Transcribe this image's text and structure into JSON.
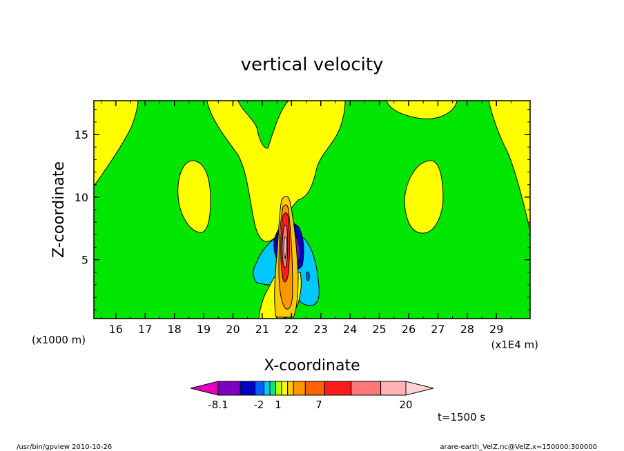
{
  "chart_data": {
    "type": "contour",
    "title": "vertical velocity",
    "xlabel": "X-coordinate",
    "ylabel": "Z-coordinate",
    "x_unit_label": "(x1E4 m)",
    "y_unit_label": "(x1000 m)",
    "xlim": [
      15.25,
      30.15
    ],
    "ylim": [
      0.3,
      17.7
    ],
    "x_ticks": [
      16,
      17,
      18,
      19,
      20,
      21,
      22,
      23,
      24,
      25,
      26,
      27,
      28,
      29
    ],
    "y_ticks": [
      5,
      10,
      15
    ],
    "grid": false,
    "time_label": "t=1500 s",
    "colorbar": {
      "colors": [
        "#e000c0",
        "#8000c0",
        "#0000c0",
        "#0060ff",
        "#00c8ff",
        "#00e680",
        "#b4ff00",
        "#ffff00",
        "#ffc800",
        "#ff9600",
        "#ff6400",
        "#ff1a1a",
        "#ff7878",
        "#ffb4b4",
        "#ffd2d2"
      ],
      "labeled_ticks": [
        "-8.1",
        "-2",
        "1",
        "7",
        "20"
      ]
    },
    "dominant_field": "weak positive (green)",
    "features": [
      {
        "name": "updraft core",
        "x": 21.6,
        "z_range": [
          0.4,
          10.3
        ],
        "max": 20
      },
      {
        "name": "downdraft flanks",
        "x": [
          21.2,
          22.0
        ],
        "z_range": [
          3.5,
          8.0
        ],
        "min": -8.1
      }
    ]
  },
  "footer": {
    "left": "/usr/bin/gpview  2010-10-26",
    "right": "arare-earth_VelZ.nc@VelZ,x=150000:300000"
  }
}
